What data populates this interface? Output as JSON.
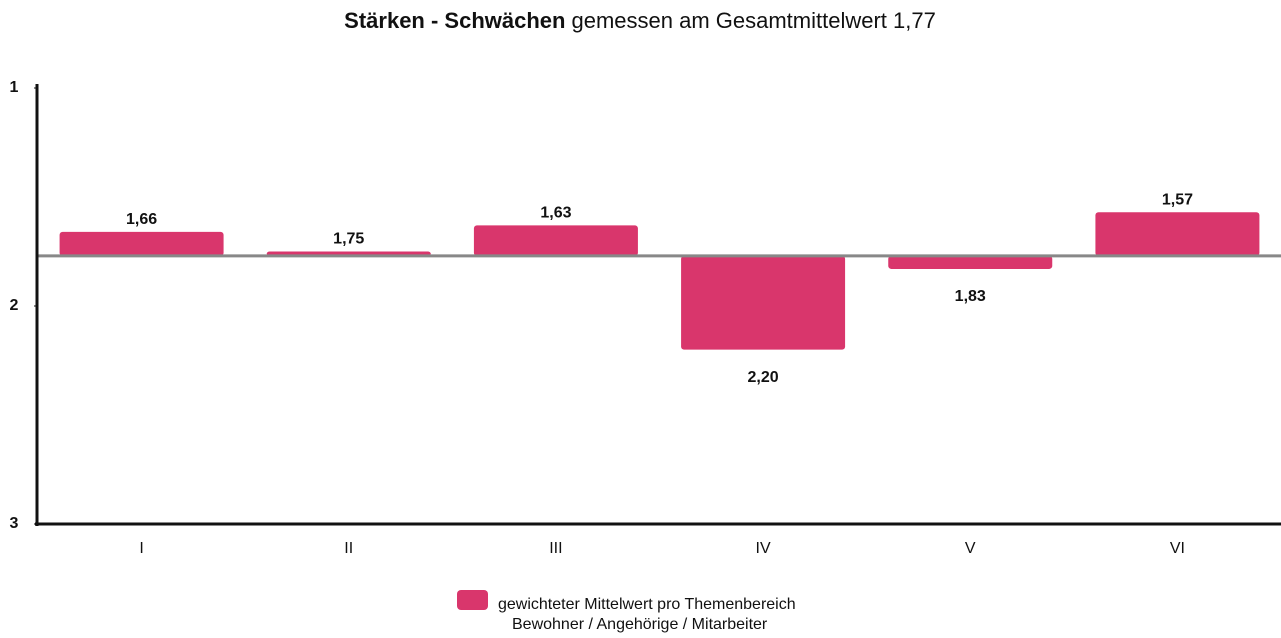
{
  "chart_data": {
    "type": "bar",
    "title_bold": "Stärken - Schwächen",
    "title": "gemessen am Gesamtmittelwert 1,77",
    "baseline": 1.77,
    "categories": [
      "I",
      "II",
      "III",
      "IV",
      "V",
      "VI"
    ],
    "series": [
      {
        "name": "gewichteter Mittelwert pro Themenbereich",
        "color": "#d9366c",
        "values": [
          1.66,
          1.75,
          1.63,
          2.2,
          1.83,
          1.57
        ],
        "value_labels": [
          "1,66",
          "1,75",
          "1,63",
          "2,20",
          "1,83",
          "1,57"
        ]
      }
    ],
    "legend_note": "Bewohner / Angehörige / Mitarbeiter",
    "ylim": [
      1,
      3
    ],
    "yticks": [
      1,
      2,
      3
    ],
    "y_inverted": true,
    "grid": false
  }
}
